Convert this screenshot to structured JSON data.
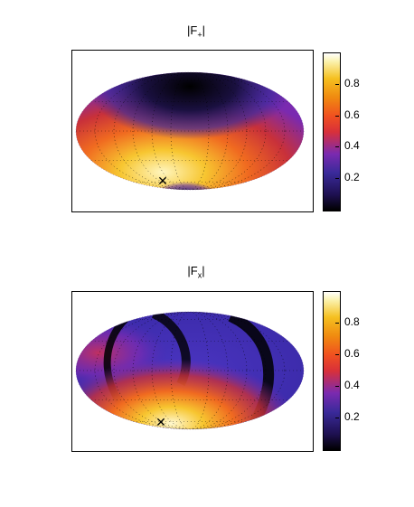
{
  "chart_data": [
    {
      "type": "heatmap",
      "title_main": "|F",
      "title_sub": "+",
      "title_end": "|",
      "colorbar_ticks": [
        "0.2",
        "0.4",
        "0.6",
        "0.8"
      ],
      "colorbar_tick_values": [
        0.2,
        0.4,
        0.6,
        0.8
      ],
      "colorbar_range": [
        0,
        1
      ],
      "colormap": [
        "#000000",
        "#3a2a9a",
        "#d8303a",
        "#f08a10",
        "#fbf3b0"
      ],
      "projection": "mollweide",
      "grid": true
    },
    {
      "type": "heatmap",
      "title_main": "|F",
      "title_sub": "x",
      "title_end": "|",
      "colorbar_ticks": [
        "0.2",
        "0.4",
        "0.6",
        "0.8"
      ],
      "colorbar_tick_values": [
        0.2,
        0.4,
        0.6,
        0.8
      ],
      "colorbar_range": [
        0,
        1
      ],
      "colormap": [
        "#000000",
        "#3a2a9a",
        "#d8303a",
        "#f08a10",
        "#fbf3b0"
      ],
      "projection": "mollweide",
      "grid": true
    }
  ],
  "marker_symbol": "✕"
}
